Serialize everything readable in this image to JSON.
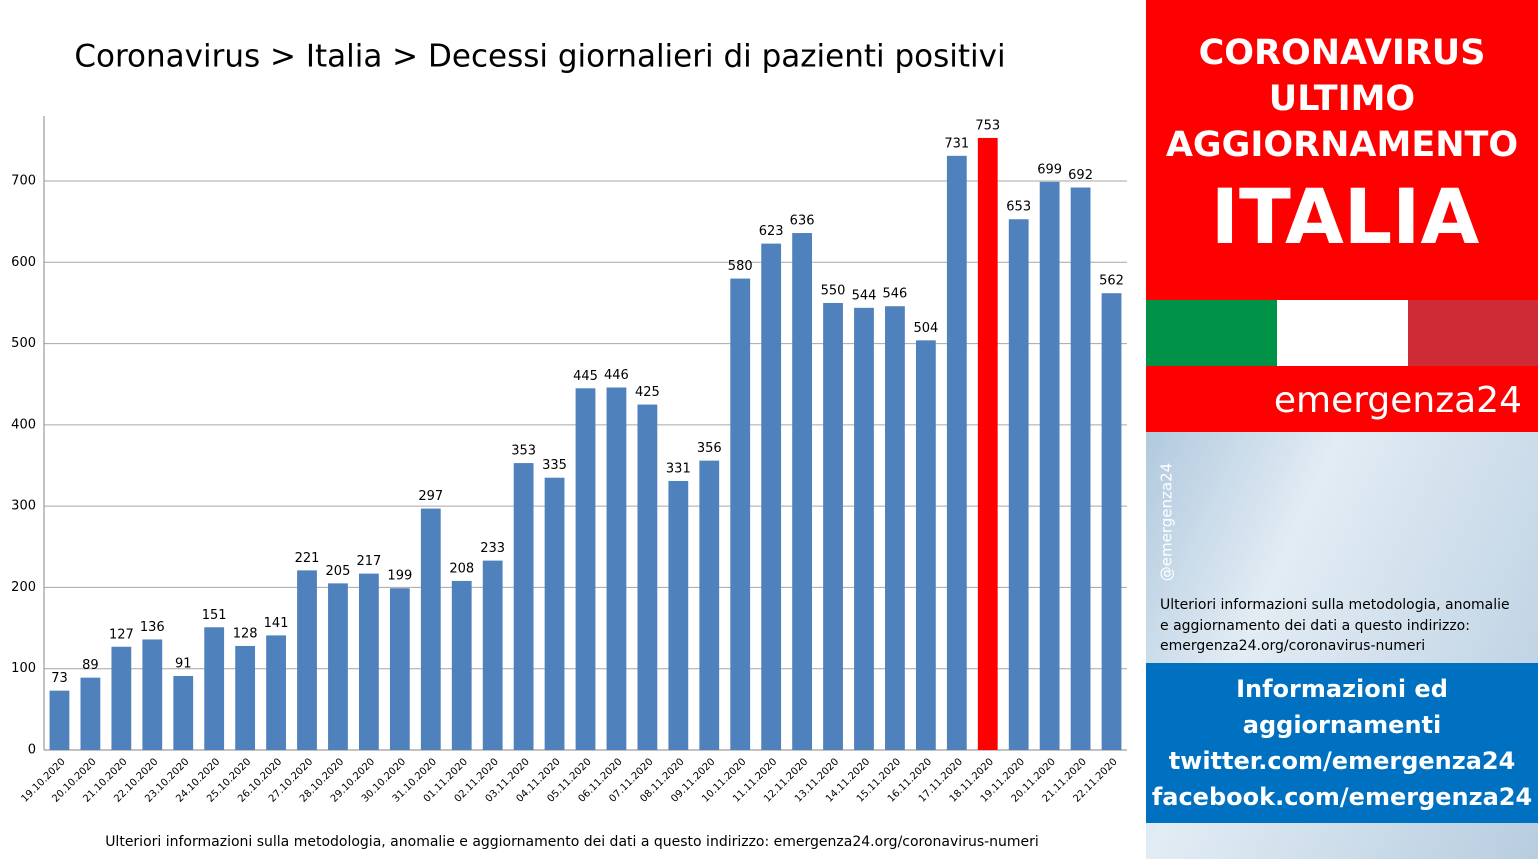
{
  "chart_data": {
    "type": "bar",
    "title": "Coronavirus > Italia > Decessi giornalieri di pazienti positivi",
    "footnote": "Ulteriori informazioni sulla metodologia, anomalie e aggiornamento dei dati a questo indirizzo: emergenza24.org/coronavirus-numeri",
    "categories": [
      "19.10.2020",
      "20.10.2020",
      "21.10.2020",
      "22.10.2020",
      "23.10.2020",
      "24.10.2020",
      "25.10.2020",
      "26.10.2020",
      "27.10.2020",
      "28.10.2020",
      "29.10.2020",
      "30.10.2020",
      "31.10.2020",
      "01.11.2020",
      "02.11.2020",
      "03.11.2020",
      "04.11.2020",
      "05.11.2020",
      "06.11.2020",
      "07.11.2020",
      "08.11.2020",
      "09.11.2020",
      "10.11.2020",
      "11.11.2020",
      "12.11.2020",
      "13.11.2020",
      "14.11.2020",
      "15.11.2020",
      "16.11.2020",
      "17.11.2020",
      "18.11.2020",
      "19.11.2020",
      "20.11.2020",
      "21.11.2020",
      "22.11.2020"
    ],
    "values": [
      73,
      89,
      127,
      136,
      91,
      151,
      128,
      141,
      221,
      205,
      217,
      199,
      297,
      208,
      233,
      353,
      335,
      445,
      446,
      425,
      331,
      356,
      580,
      623,
      636,
      550,
      544,
      546,
      504,
      731,
      753,
      653,
      699,
      692,
      562
    ],
    "colors": [
      "#4f81bd",
      "#4f81bd",
      "#4f81bd",
      "#4f81bd",
      "#4f81bd",
      "#4f81bd",
      "#4f81bd",
      "#4f81bd",
      "#4f81bd",
      "#4f81bd",
      "#4f81bd",
      "#4f81bd",
      "#4f81bd",
      "#4f81bd",
      "#4f81bd",
      "#4f81bd",
      "#4f81bd",
      "#4f81bd",
      "#4f81bd",
      "#4f81bd",
      "#4f81bd",
      "#4f81bd",
      "#4f81bd",
      "#4f81bd",
      "#4f81bd",
      "#4f81bd",
      "#4f81bd",
      "#4f81bd",
      "#4f81bd",
      "#4f81bd",
      "#ff0000",
      "#4f81bd",
      "#4f81bd",
      "#4f81bd",
      "#4f81bd"
    ],
    "ylim": [
      0,
      780
    ],
    "yticks": [
      0,
      100,
      200,
      300,
      400,
      500,
      600,
      700
    ],
    "grid": true
  },
  "sidebar": {
    "header": [
      "CORONAVIRUS",
      "ULTIMO",
      "AGGIORNAMENTO"
    ],
    "country": "ITALIA",
    "brand": "emergenza24",
    "handle": "@emergenza24",
    "info": [
      "Ulteriori informazioni sulla metodologia, anomalie",
      "e aggiornamento dei dati a questo indirizzo:",
      "emergenza24.org/coronavirus-numeri"
    ],
    "links": [
      "Informazioni ed",
      "aggiornamenti",
      "twitter.com/emergenza24",
      "facebook.com/emergenza24"
    ]
  }
}
